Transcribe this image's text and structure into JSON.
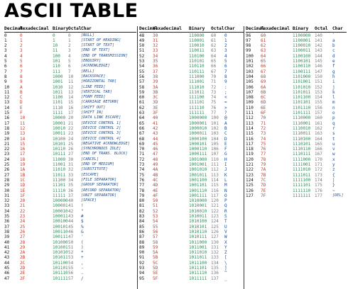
{
  "title": "ASCII TABLE",
  "headers": {
    "c1": [
      "Decimal",
      "Hexadecimal",
      "Binary",
      "Octal",
      "Char"
    ],
    "c2": [
      "Decimal",
      "Hexadecimal",
      "Binary",
      "Octal",
      "Char"
    ],
    "c3": [
      "Decimal",
      "Hexadecimal",
      "Binary",
      "Octal",
      "Char"
    ]
  },
  "col1": [
    [
      "0",
      "0",
      "0",
      "0",
      "[NULL]"
    ],
    [
      "1",
      "1",
      "1",
      "1",
      "[START OF HEADING]"
    ],
    [
      "2",
      "2",
      "10",
      "2",
      "[START OF TEXT]"
    ],
    [
      "3",
      "3",
      "11",
      "3",
      "[END OF TEXT]"
    ],
    [
      "4",
      "4",
      "100",
      "4",
      "[END OF TRANSMISSION]"
    ],
    [
      "5",
      "5",
      "101",
      "5",
      "[ENQUIRY]"
    ],
    [
      "6",
      "6",
      "110",
      "6",
      "[ACKNOWLEDGE]"
    ],
    [
      "7",
      "7",
      "111",
      "7",
      "[BELL]"
    ],
    [
      "8",
      "8",
      "1000",
      "10",
      "[BACKSPACE]"
    ],
    [
      "9",
      "9",
      "1001",
      "11",
      "[HORIZONTAL TAB]"
    ],
    [
      "10",
      "A",
      "1010",
      "12",
      "[LINE FEED]"
    ],
    [
      "11",
      "B",
      "1011",
      "13",
      "[VERTICAL TAB]"
    ],
    [
      "12",
      "C",
      "1100",
      "14",
      "[FORM FEED]"
    ],
    [
      "13",
      "D",
      "1101",
      "15",
      "[CARRIAGE RETURN]"
    ],
    [
      "14",
      "E",
      "1110",
      "16",
      "[SHIFT OUT]"
    ],
    [
      "15",
      "F",
      "1111",
      "17",
      "[SHIFT IN]"
    ],
    [
      "16",
      "10",
      "10000",
      "20",
      "[DATA LINK ESCAPE]"
    ],
    [
      "17",
      "11",
      "10001",
      "21",
      "[DEVICE CONTROL 1]"
    ],
    [
      "18",
      "12",
      "10010",
      "22",
      "[DEVICE CONTROL 2]"
    ],
    [
      "19",
      "13",
      "10011",
      "23",
      "[DEVICE CONTROL 3]"
    ],
    [
      "20",
      "14",
      "10100",
      "24",
      "[DEVICE CONTROL 4]"
    ],
    [
      "21",
      "15",
      "10101",
      "25",
      "[NEGATIVE ACKNOWLEDGE]"
    ],
    [
      "22",
      "16",
      "10110",
      "26",
      "[SYNCHRONOUS IDLE]"
    ],
    [
      "23",
      "17",
      "10111",
      "27",
      "[END OF TRANS. BLOCK]"
    ],
    [
      "24",
      "18",
      "11000",
      "30",
      "[CANCEL]"
    ],
    [
      "25",
      "19",
      "11001",
      "31",
      "[END OF MEDIUM]"
    ],
    [
      "26",
      "1A",
      "11010",
      "32",
      "[SUBSTITUTE]"
    ],
    [
      "27",
      "1B",
      "11011",
      "33",
      "[ESCAPE]"
    ],
    [
      "28",
      "1C",
      "11100",
      "34",
      "[FILE SEPARATOR]"
    ],
    [
      "29",
      "1D",
      "11101",
      "35",
      "[GROUP SEPARATOR]"
    ],
    [
      "30",
      "1E",
      "11110",
      "36",
      "[RECORD SEPARATOR]"
    ],
    [
      "31",
      "1F",
      "11111",
      "37",
      "[UNIT SEPARATOR]"
    ],
    [
      "32",
      "20",
      "100000",
      "40",
      "[SPACE]"
    ],
    [
      "33",
      "21",
      "100001",
      "41",
      "!"
    ],
    [
      "34",
      "22",
      "100010",
      "42",
      "\""
    ],
    [
      "35",
      "23",
      "100011",
      "43",
      "#"
    ],
    [
      "36",
      "24",
      "100100",
      "44",
      "$"
    ],
    [
      "37",
      "25",
      "100101",
      "45",
      "%"
    ],
    [
      "38",
      "26",
      "100110",
      "46",
      "&"
    ],
    [
      "39",
      "27",
      "100111",
      "47",
      "'"
    ],
    [
      "40",
      "28",
      "101000",
      "50",
      "("
    ],
    [
      "41",
      "29",
      "101001",
      "51",
      ")"
    ],
    [
      "42",
      "2A",
      "101010",
      "52",
      "*"
    ],
    [
      "43",
      "2B",
      "101011",
      "53",
      "+"
    ],
    [
      "44",
      "2C",
      "101100",
      "54",
      ","
    ],
    [
      "45",
      "2D",
      "101101",
      "55",
      "-"
    ],
    [
      "46",
      "2E",
      "101110",
      "56",
      "."
    ],
    [
      "47",
      "2F",
      "101111",
      "57",
      "/"
    ]
  ],
  "col2": [
    [
      "48",
      "30",
      "110000",
      "60",
      "0"
    ],
    [
      "49",
      "31",
      "110001",
      "61",
      "1"
    ],
    [
      "50",
      "32",
      "110010",
      "62",
      "2"
    ],
    [
      "51",
      "33",
      "110011",
      "63",
      "3"
    ],
    [
      "52",
      "34",
      "110100",
      "64",
      "4"
    ],
    [
      "53",
      "35",
      "110101",
      "65",
      "5"
    ],
    [
      "54",
      "36",
      "110110",
      "66",
      "6"
    ],
    [
      "55",
      "37",
      "110111",
      "67",
      "7"
    ],
    [
      "56",
      "38",
      "111000",
      "70",
      "8"
    ],
    [
      "57",
      "39",
      "111001",
      "71",
      "9"
    ],
    [
      "58",
      "3A",
      "111010",
      "72",
      ":"
    ],
    [
      "59",
      "3B",
      "111011",
      "73",
      ";"
    ],
    [
      "60",
      "3C",
      "111100",
      "74",
      "<"
    ],
    [
      "61",
      "3D",
      "111101",
      "75",
      "="
    ],
    [
      "62",
      "3E",
      "111110",
      "76",
      ">"
    ],
    [
      "63",
      "3F",
      "111111",
      "77",
      "?"
    ],
    [
      "64",
      "40",
      "1000000",
      "100",
      "@"
    ],
    [
      "65",
      "41",
      "1000001",
      "101",
      "A"
    ],
    [
      "66",
      "42",
      "1000010",
      "102",
      "B"
    ],
    [
      "67",
      "43",
      "1000011",
      "103",
      "C"
    ],
    [
      "68",
      "44",
      "1000100",
      "104",
      "D"
    ],
    [
      "69",
      "45",
      "1000101",
      "105",
      "E"
    ],
    [
      "70",
      "46",
      "1000110",
      "106",
      "F"
    ],
    [
      "71",
      "47",
      "1000111",
      "107",
      "G"
    ],
    [
      "72",
      "48",
      "1001000",
      "110",
      "H"
    ],
    [
      "73",
      "49",
      "1001001",
      "111",
      "I"
    ],
    [
      "74",
      "4A",
      "1001010",
      "112",
      "J"
    ],
    [
      "75",
      "4B",
      "1001011",
      "113",
      "K"
    ],
    [
      "76",
      "4C",
      "1001100",
      "114",
      "L"
    ],
    [
      "77",
      "4D",
      "1001101",
      "115",
      "M"
    ],
    [
      "78",
      "4E",
      "1001110",
      "116",
      "N"
    ],
    [
      "79",
      "4F",
      "1001111",
      "117",
      "O"
    ],
    [
      "80",
      "50",
      "1010000",
      "120",
      "P"
    ],
    [
      "81",
      "51",
      "1010001",
      "121",
      "Q"
    ],
    [
      "82",
      "52",
      "1010010",
      "122",
      "R"
    ],
    [
      "83",
      "53",
      "1010011",
      "123",
      "S"
    ],
    [
      "84",
      "54",
      "1010100",
      "124",
      "T"
    ],
    [
      "85",
      "55",
      "1010101",
      "125",
      "U"
    ],
    [
      "86",
      "56",
      "1010110",
      "126",
      "V"
    ],
    [
      "87",
      "57",
      "1010111",
      "127",
      "W"
    ],
    [
      "88",
      "58",
      "1011000",
      "130",
      "X"
    ],
    [
      "89",
      "59",
      "1011001",
      "131",
      "Y"
    ],
    [
      "90",
      "5A",
      "1011010",
      "132",
      "Z"
    ],
    [
      "91",
      "5B",
      "1011011",
      "133",
      "["
    ],
    [
      "92",
      "5C",
      "1011100",
      "134",
      "\\"
    ],
    [
      "93",
      "5D",
      "1011101",
      "135",
      "]"
    ],
    [
      "94",
      "5E",
      "1011110",
      "136",
      "^"
    ],
    [
      "95",
      "5F",
      "1011111",
      "137",
      "_"
    ]
  ],
  "col3": [
    [
      "96",
      "60",
      "1100000",
      "140",
      "`"
    ],
    [
      "97",
      "61",
      "1100001",
      "141",
      "a"
    ],
    [
      "98",
      "62",
      "1100010",
      "142",
      "b"
    ],
    [
      "99",
      "63",
      "1100011",
      "143",
      "c"
    ],
    [
      "100",
      "64",
      "1100100",
      "144",
      "d"
    ],
    [
      "101",
      "65",
      "1100101",
      "145",
      "e"
    ],
    [
      "102",
      "66",
      "1100110",
      "146",
      "f"
    ],
    [
      "103",
      "67",
      "1100111",
      "147",
      "g"
    ],
    [
      "104",
      "68",
      "1101000",
      "150",
      "h"
    ],
    [
      "105",
      "69",
      "1101001",
      "151",
      "i"
    ],
    [
      "106",
      "6A",
      "1101010",
      "152",
      "j"
    ],
    [
      "107",
      "6B",
      "1101011",
      "153",
      "k"
    ],
    [
      "108",
      "6C",
      "1101100",
      "154",
      "l"
    ],
    [
      "109",
      "6D",
      "1101101",
      "155",
      "m"
    ],
    [
      "110",
      "6E",
      "1101110",
      "156",
      "n"
    ],
    [
      "111",
      "6F",
      "1101111",
      "157",
      "o"
    ],
    [
      "112",
      "70",
      "1110000",
      "160",
      "p"
    ],
    [
      "113",
      "71",
      "1110001",
      "161",
      "q"
    ],
    [
      "114",
      "72",
      "1110010",
      "162",
      "r"
    ],
    [
      "115",
      "73",
      "1110011",
      "163",
      "s"
    ],
    [
      "116",
      "74",
      "1110100",
      "164",
      "t"
    ],
    [
      "117",
      "75",
      "1110101",
      "165",
      "u"
    ],
    [
      "118",
      "76",
      "1110110",
      "166",
      "v"
    ],
    [
      "119",
      "77",
      "1110111",
      "167",
      "w"
    ],
    [
      "120",
      "78",
      "1111000",
      "170",
      "x"
    ],
    [
      "121",
      "79",
      "1111001",
      "171",
      "y"
    ],
    [
      "122",
      "7A",
      "1111010",
      "172",
      "z"
    ],
    [
      "123",
      "7B",
      "1111011",
      "173",
      "{"
    ],
    [
      "124",
      "7C",
      "1111100",
      "174",
      "|"
    ],
    [
      "125",
      "7D",
      "1111101",
      "175",
      "}"
    ],
    [
      "126",
      "7E",
      "1111110",
      "176",
      "~"
    ],
    [
      "127",
      "7F",
      "1111111",
      "177",
      "[DEL]"
    ]
  ]
}
